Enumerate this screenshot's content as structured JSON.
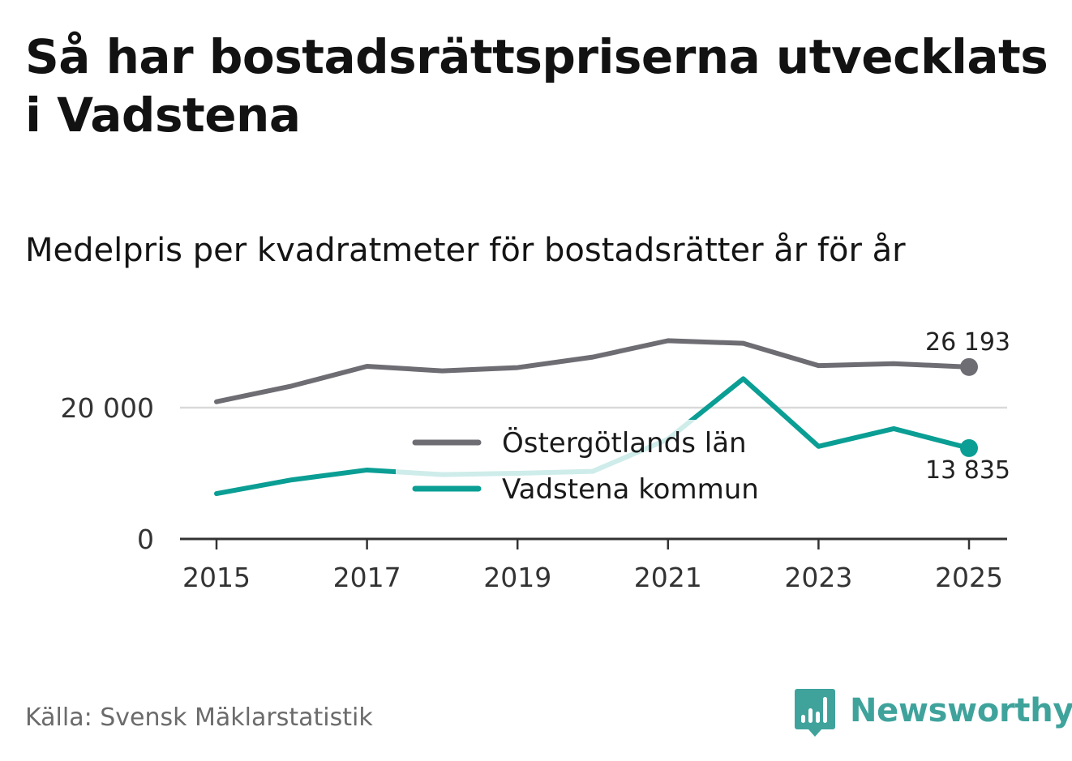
{
  "title": "Så har bostadsrättspriserna utvecklats i Vadstena",
  "subtitle": "Medelpris per kvadratmeter för bostadsrätter år för år",
  "source": "Källa: Svensk Mäklarstatistik",
  "brand": {
    "name": "Newsworthy",
    "icon": "newsworthy-bar-chart-icon"
  },
  "colors": {
    "lan": "#6e6d73",
    "kommun": "#0a9e94",
    "grid": "#d9d9d9",
    "axis": "#333333",
    "brand": "#3fa39c"
  },
  "chart_data": {
    "type": "line",
    "title": "Medelpris per kvadratmeter för bostadsrätter år för år",
    "xlabel": "",
    "ylabel": "",
    "x": [
      2015,
      2016,
      2017,
      2018,
      2019,
      2020,
      2021,
      2022,
      2023,
      2024,
      2025
    ],
    "xticks": [
      2015,
      2017,
      2019,
      2021,
      2023,
      2025
    ],
    "xtick_labels": [
      "2015",
      "2017",
      "2019",
      "2021",
      "2023",
      "2025"
    ],
    "yticks": [
      0,
      20000
    ],
    "ytick_labels": [
      "0",
      "20 000"
    ],
    "ylim": [
      0,
      30000
    ],
    "grid": true,
    "legend": "center",
    "series": [
      {
        "name": "Östergötlands län",
        "values": [
          20900,
          23300,
          26300,
          25600,
          26100,
          27700,
          30200,
          29800,
          26400,
          26700,
          26193
        ],
        "end_label": "26 193"
      },
      {
        "name": "Vadstena kommun",
        "values": [
          6900,
          9000,
          10500,
          9800,
          10000,
          10300,
          15200,
          24400,
          14100,
          16800,
          13835
        ],
        "end_label": "13 835"
      }
    ]
  }
}
